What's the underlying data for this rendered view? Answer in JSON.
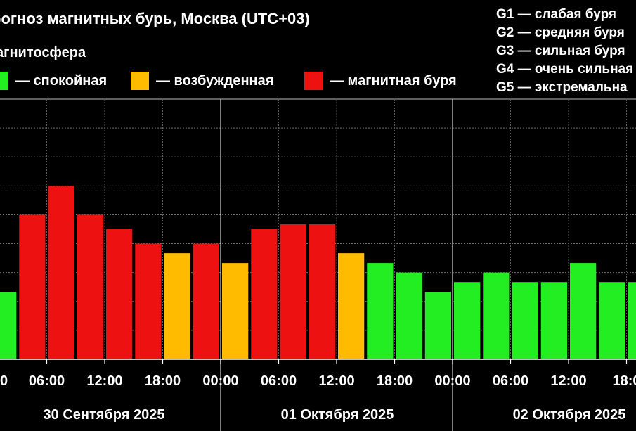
{
  "title": "рогноз магнитных бурь, Москва (UTC+03)",
  "subtitle": "агнитосфера",
  "legend": [
    {
      "label": "— спокойная",
      "color": "#22ee22"
    },
    {
      "label": "— возбужденная",
      "color": "#ffbb00"
    },
    {
      "label": "— магнитная буря",
      "color": "#ee1111"
    }
  ],
  "g_legend": [
    "G1 — слабая буря",
    "G2 — средняя буря",
    "G3 — сильная буря",
    "G4 — очень сильная",
    "G5 — экстремальна"
  ],
  "chart_data": {
    "type": "bar",
    "title": "рогноз магнитных бурь, Москва (UTC+03)",
    "x_tick_labels": [
      "0",
      "06:00",
      "12:00",
      "18:00",
      "00:00",
      "06:00",
      "12:00",
      "18:00",
      "00:00",
      "06:00",
      "12:00",
      "18:0"
    ],
    "date_labels": [
      "30 Сентября 2025",
      "01 Октября 2025",
      "02 Октября 2025"
    ],
    "ylim": [
      0,
      9
    ],
    "grid": true,
    "series": [
      {
        "values": [
          2.33,
          5.0,
          6.0,
          5.0,
          4.5,
          4.0,
          3.67,
          4.0,
          3.33,
          4.5,
          4.67,
          4.67,
          3.67,
          3.33,
          3.0,
          2.33,
          2.67,
          3.0,
          2.67,
          2.67,
          3.33,
          2.67,
          2.67
        ],
        "levels": [
          "quiet",
          "storm",
          "storm",
          "storm",
          "storm",
          "storm",
          "active",
          "storm",
          "active",
          "storm",
          "storm",
          "storm",
          "active",
          "quiet",
          "quiet",
          "quiet",
          "quiet",
          "quiet",
          "quiet",
          "quiet",
          "quiet",
          "quiet",
          "quiet"
        ]
      }
    ],
    "level_colors": {
      "quiet": "#22ee22",
      "active": "#ffbb00",
      "storm": "#ee1111"
    }
  }
}
